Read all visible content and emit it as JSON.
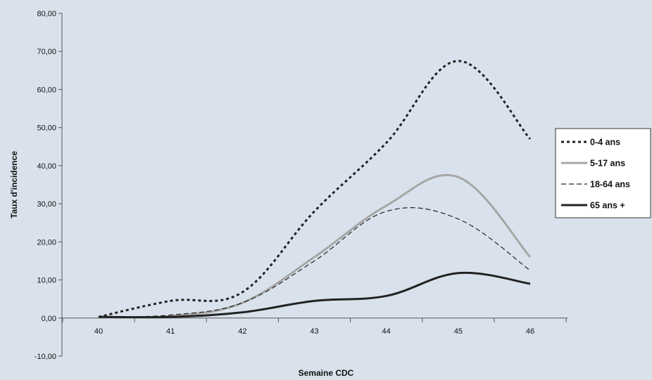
{
  "chart_data": {
    "type": "line",
    "title": "",
    "xlabel": "Semaine CDC",
    "ylabel": "Taux d'incidence",
    "x": [
      40,
      41,
      42,
      43,
      44,
      45,
      46
    ],
    "x_tick_labels": [
      "40",
      "41",
      "42",
      "43",
      "44",
      "45",
      "46"
    ],
    "ylim": [
      -10,
      80
    ],
    "y_ticks": [
      -10,
      0,
      10,
      20,
      30,
      40,
      50,
      60,
      70,
      80
    ],
    "y_tick_labels": [
      "-10,00",
      "0,00",
      "10,00",
      "20,00",
      "30,00",
      "40,00",
      "50,00",
      "60,00",
      "70,00",
      "80,00"
    ],
    "grid": false,
    "smooth": true,
    "legend_position": "right",
    "series": [
      {
        "name": "0-4 ans",
        "style": "dotted",
        "color": "#222222",
        "values": [
          0.3,
          4.5,
          6.8,
          28.0,
          46.0,
          67.5,
          47.0
        ]
      },
      {
        "name": "5-17 ans",
        "style": "solid",
        "color": "#a6a6a6",
        "values": [
          0.3,
          0.5,
          4.0,
          16.0,
          29.5,
          37.0,
          16.0
        ]
      },
      {
        "name": "18-64 ans",
        "style": "dashed",
        "color": "#222222",
        "values": [
          0.3,
          0.8,
          4.0,
          15.0,
          28.0,
          26.0,
          12.5
        ]
      },
      {
        "name": "65 ans +",
        "style": "solid",
        "color": "#222222",
        "values": [
          0.3,
          0.3,
          1.5,
          4.5,
          5.8,
          11.8,
          9.0
        ]
      }
    ]
  }
}
